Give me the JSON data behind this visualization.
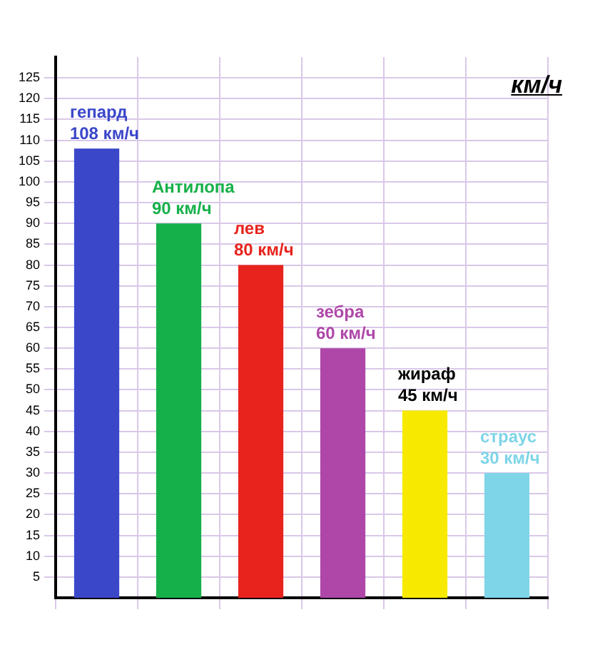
{
  "chart_data": {
    "type": "bar",
    "ylabel": "км/ч",
    "categories": [
      "гепард",
      "Антилопа",
      "лев",
      "зебра",
      "жираф",
      "страус"
    ],
    "values": [
      108,
      90,
      80,
      60,
      45,
      30
    ],
    "value_labels": [
      "108 км/ч",
      "90 км/ч",
      "80 км/ч",
      "60 км/ч",
      "45 км/ч",
      "30 км/ч"
    ],
    "colors": [
      "#3b47c9",
      "#16b04a",
      "#e8231d",
      "#ae47a8",
      "#f7ea00",
      "#7fd5e8"
    ],
    "ylim": [
      0,
      130
    ],
    "yticks": [
      5,
      10,
      15,
      20,
      25,
      30,
      35,
      40,
      45,
      50,
      55,
      60,
      65,
      70,
      75,
      80,
      85,
      90,
      95,
      100,
      105,
      110,
      115,
      120,
      125
    ],
    "grid": true,
    "tick_labels": "y",
    "legend": false
  }
}
